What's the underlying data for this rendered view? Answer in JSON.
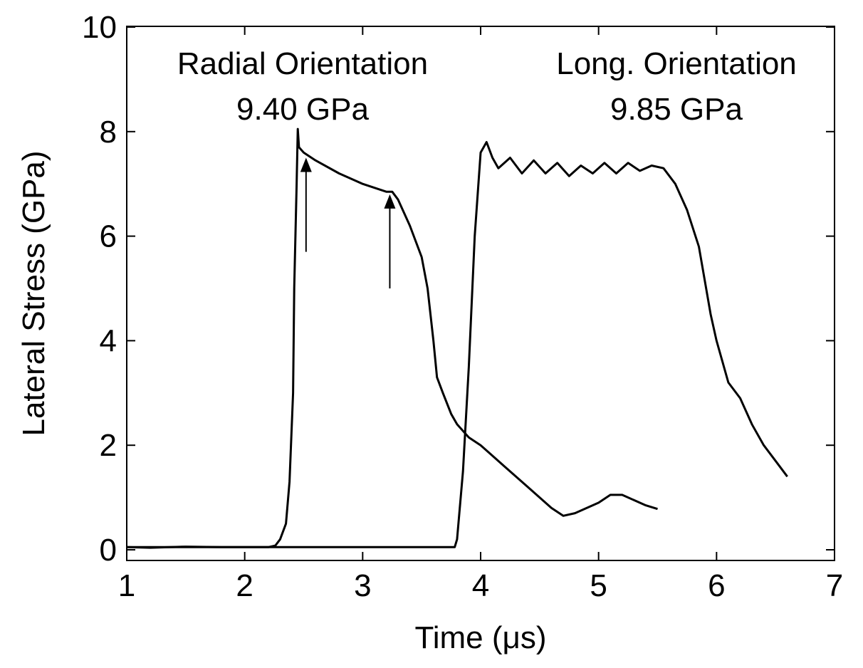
{
  "chart_data": {
    "type": "line",
    "title": "",
    "xlabel": "Time (μs)",
    "ylabel": "Lateral Stress (GPa)",
    "xlim": [
      1,
      7
    ],
    "ylim": [
      0,
      10
    ],
    "x_ticks": [
      1,
      2,
      3,
      4,
      5,
      6,
      7
    ],
    "y_ticks": [
      0,
      2,
      4,
      6,
      8,
      10
    ],
    "grid": false,
    "series": [
      {
        "x": [
          1.0,
          1.2,
          1.5,
          1.8,
          2.0,
          2.2,
          2.26,
          2.3,
          2.35,
          2.38,
          2.41,
          2.42,
          2.44,
          2.45,
          2.46,
          2.5,
          2.6,
          2.8,
          3.0,
          3.2,
          3.25,
          3.3,
          3.4,
          3.5,
          3.55,
          3.6,
          3.63,
          3.68,
          3.75,
          3.8,
          3.9,
          4.0,
          4.2,
          4.4,
          4.6,
          4.7,
          4.8,
          5.0,
          5.1,
          5.2,
          5.3,
          5.4,
          5.5
        ],
        "values": [
          0.05,
          0.04,
          0.06,
          0.05,
          0.05,
          0.05,
          0.08,
          0.2,
          0.5,
          1.3,
          3.0,
          5.0,
          7.0,
          8.05,
          7.7,
          7.6,
          7.45,
          7.2,
          7.0,
          6.85,
          6.85,
          6.7,
          6.2,
          5.6,
          5.0,
          4.0,
          3.3,
          3.0,
          2.6,
          2.4,
          2.15,
          2.0,
          1.6,
          1.2,
          0.8,
          0.65,
          0.7,
          0.9,
          1.05,
          1.05,
          0.95,
          0.85,
          0.78
        ]
      },
      {
        "x": [
          1.0,
          1.5,
          2.0,
          2.5,
          3.0,
          3.5,
          3.78,
          3.8,
          3.85,
          3.9,
          3.95,
          4.0,
          4.05,
          4.1,
          4.15,
          4.25,
          4.35,
          4.45,
          4.55,
          4.65,
          4.75,
          4.85,
          4.95,
          5.05,
          5.15,
          5.25,
          5.35,
          5.45,
          5.55,
          5.65,
          5.75,
          5.85,
          5.95,
          6.0,
          6.1,
          6.2,
          6.3,
          6.4,
          6.5,
          6.6
        ],
        "values": [
          0.05,
          0.05,
          0.05,
          0.05,
          0.05,
          0.05,
          0.05,
          0.2,
          1.5,
          3.5,
          6.0,
          7.6,
          7.8,
          7.5,
          7.3,
          7.5,
          7.2,
          7.45,
          7.2,
          7.4,
          7.15,
          7.35,
          7.2,
          7.4,
          7.2,
          7.4,
          7.25,
          7.35,
          7.3,
          7.0,
          6.5,
          5.8,
          4.5,
          4.0,
          3.2,
          2.9,
          2.4,
          2.0,
          1.7,
          1.4
        ]
      }
    ],
    "annotations": [
      {
        "lines": [
          "Radial Orientation",
          "9.40 GPa"
        ]
      },
      {
        "lines": [
          "Long. Orientation",
          "9.85 GPa"
        ]
      }
    ],
    "arrows": [
      {
        "x": 2.52,
        "y_from": 5.7,
        "y_to": 7.5
      },
      {
        "x": 3.23,
        "y_from": 5.0,
        "y_to": 6.8
      }
    ]
  }
}
